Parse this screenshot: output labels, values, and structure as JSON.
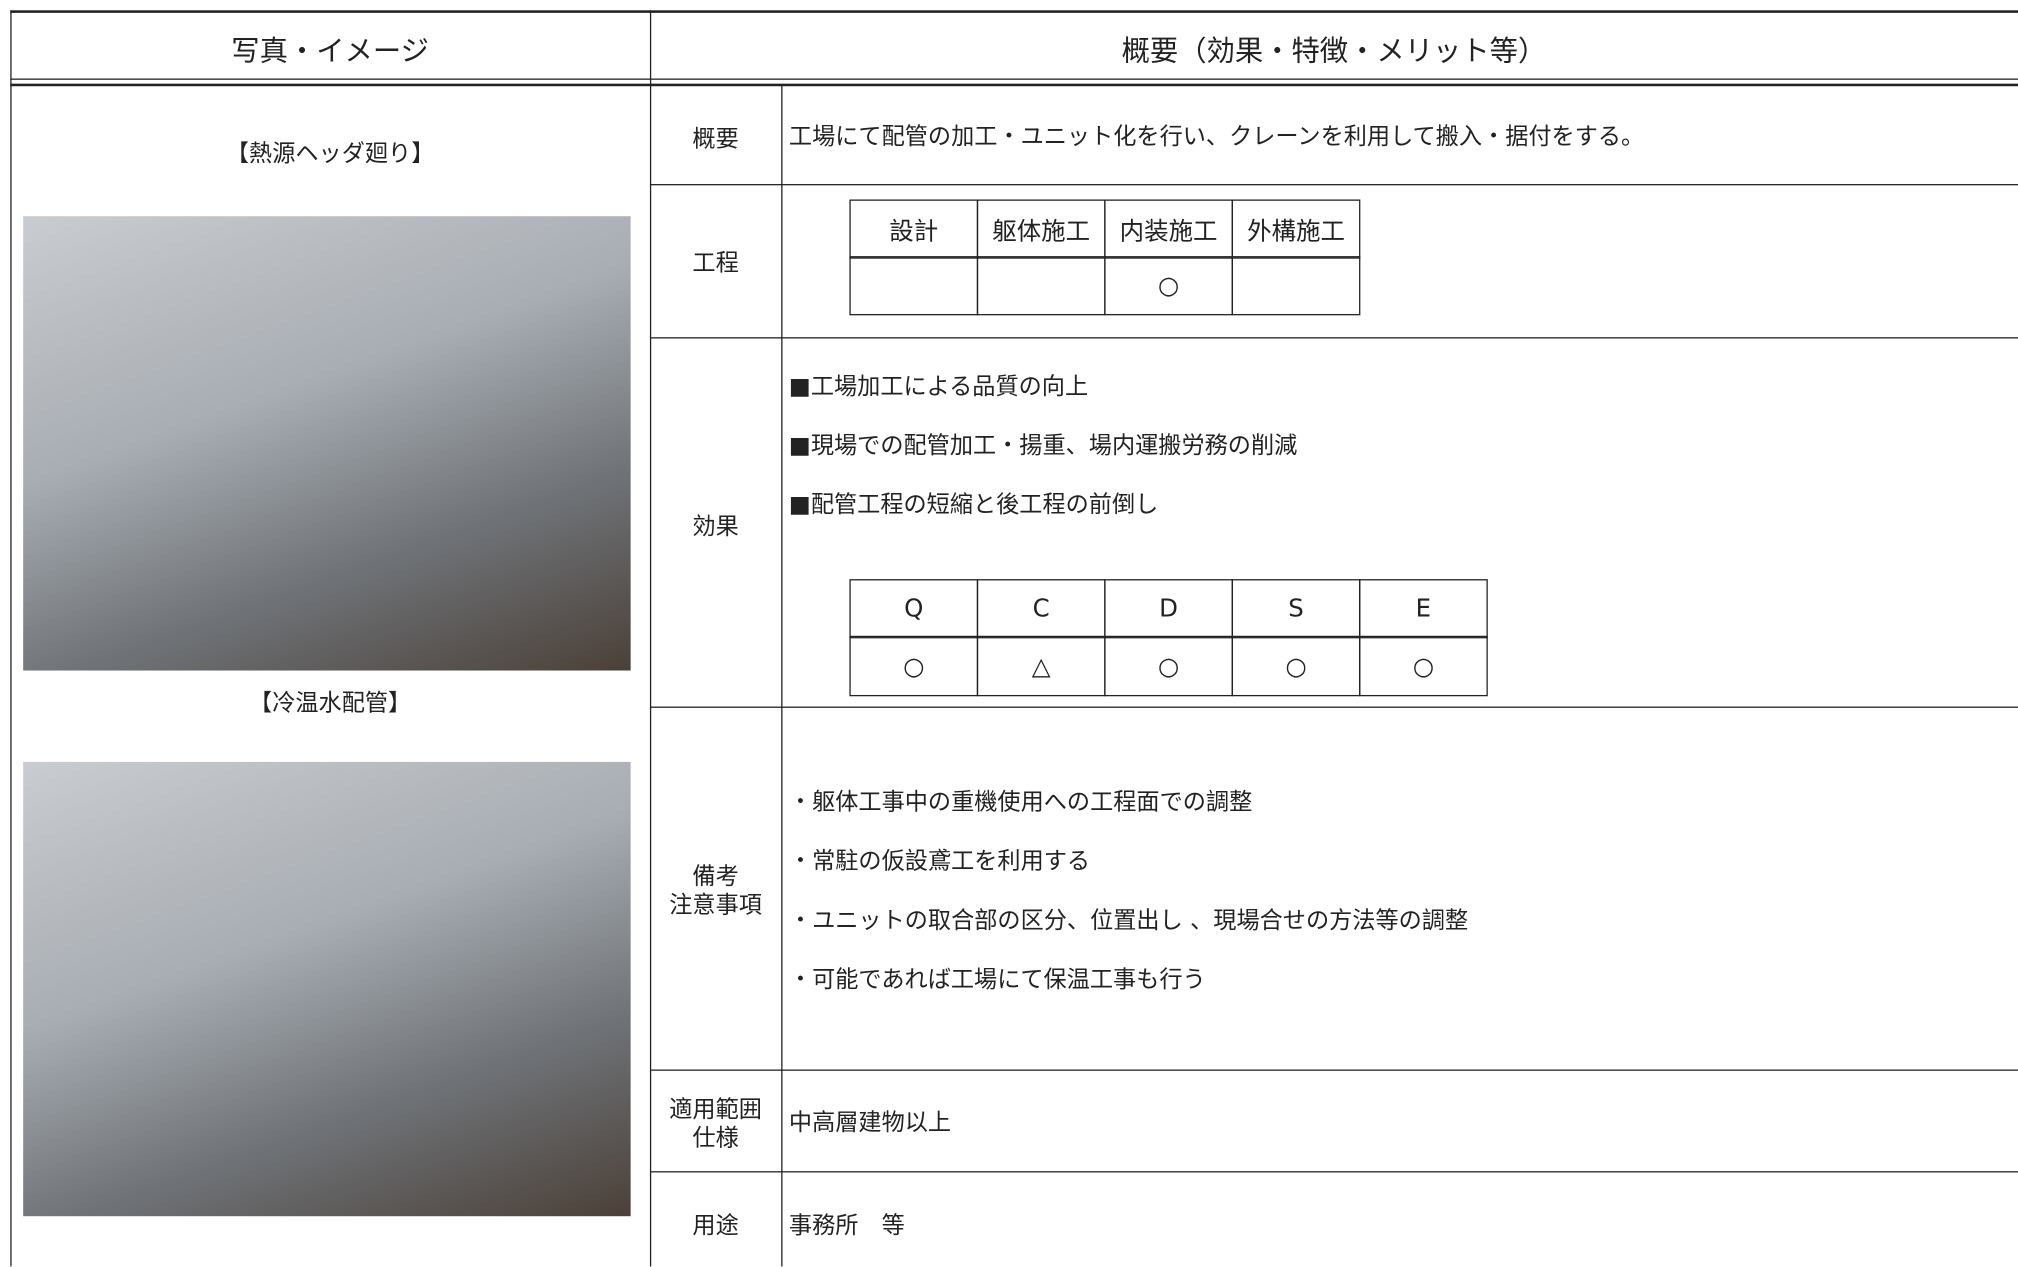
{
  "header": {
    "photo_column": "写真・イメージ",
    "summary_column": "概要（効果・特徴・メリット等）"
  },
  "photos": [
    {
      "caption": "【熱源ヘッダ廻り】"
    },
    {
      "caption": "【冷温水配管】"
    }
  ],
  "rows": {
    "overview": {
      "label": "概要",
      "text": "工場にて配管の加工・ユニット化を行い、クレーンを利用して搬入・据付をする。"
    },
    "process": {
      "label": "工程",
      "headers": [
        "設計",
        "躯体施工",
        "内装施工",
        "外構施工"
      ],
      "marks": [
        null,
        null,
        "○",
        null
      ]
    },
    "effects": {
      "label": "効果",
      "items": [
        "■工場加工による品質の向上",
        "■現場での配管加工・揚重、場内運搬労務の削減",
        "■配管工程の短縮と後工程の前倒し"
      ],
      "qcdse_headers": [
        "Q",
        "C",
        "D",
        "S",
        "E"
      ],
      "qcdse_marks": [
        "○",
        "△",
        "○",
        "○",
        "○"
      ]
    },
    "notes": {
      "label": [
        "備考",
        "注意事項"
      ],
      "items": [
        "・躯体工事中の重機使用への工程面での調整",
        "・常駐の仮設鳶工を利用する",
        "・ユニットの取合部の区分、位置出し 、現場合せの方法等の調整",
        "・可能であれば工場にて保温工事も行う"
      ]
    },
    "scope": {
      "label": [
        "適用範囲",
        "仕様"
      ],
      "text": "中高層建物以上"
    },
    "usage": {
      "label": "用途",
      "text": "事務所　等"
    }
  }
}
